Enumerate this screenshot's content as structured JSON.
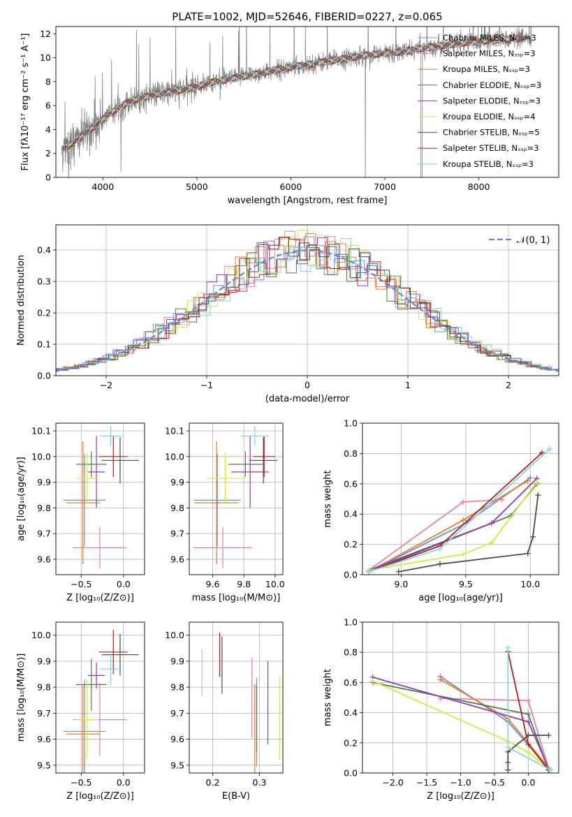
{
  "title": "PLATE=1002, MJD=52646, FIBERID=0227, z=0.065",
  "colors": [
    "#6b8fd6",
    "#e57fb3",
    "#e67e22",
    "#4a7d4a",
    "#8e3ab8",
    "#d4e840",
    "#4a4a4a",
    "#b01f1f",
    "#7fd8e0"
  ],
  "observed_color": "#808080",
  "chart_data": [
    {
      "id": "spectrum",
      "type": "line",
      "title": "PLATE=1002, MJD=52646, FIBERID=0227, z=0.065",
      "xlabel": "wavelength [Angstrom, rest frame]",
      "ylabel": "Flux [fλ10⁻¹⁷ erg cm⁻² s⁻¹ A⁻¹]",
      "xlim": [
        3500,
        8850
      ],
      "ylim": [
        0,
        12.6
      ],
      "xticks": [
        4000,
        5000,
        6000,
        7000,
        8000
      ],
      "yticks": [
        0,
        2,
        4,
        6,
        8,
        10,
        12
      ],
      "legend": "top-right",
      "grid": false,
      "legend_entries": [
        "Chabrier MILES, Nₛₛₚ=3",
        "Salpeter MILES, Nₛₛₚ=3",
        "Kroupa MILES, Nₛₛₚ=3",
        "Chabrier ELODIE, Nₛₛₚ=3",
        "Salpeter ELODIE, Nₛₛₚ=3",
        "Kroupa ELODIE, Nₛₛₚ=4",
        "Chabrier STELIB, Nₛₛₚ=5",
        "Salpeter STELIB, Nₛₛₚ=3",
        "Kroupa STELIB, Nₛₛₚ=3"
      ],
      "continuum": {
        "x": [
          3550,
          3700,
          3900,
          4100,
          4300,
          4600,
          4900,
          5200,
          5600,
          6000,
          6400,
          6800,
          7200,
          7400,
          7800,
          8200,
          8500
        ],
        "y": [
          2.2,
          3.0,
          4.2,
          5.5,
          6.4,
          7.0,
          7.4,
          8.0,
          8.6,
          9.2,
          9.7,
          10.2,
          10.5,
          10.8,
          11.2,
          11.5,
          11.6
        ]
      }
    },
    {
      "id": "residuals",
      "type": "histogram",
      "xlabel": "(data-model)/error",
      "ylabel": "Normed distribution",
      "xlim": [
        -2.5,
        2.5
      ],
      "ylim": [
        0,
        0.48
      ],
      "xticks": [
        -2,
        -1,
        0,
        1,
        2
      ],
      "yticks": [
        0.0,
        0.1,
        0.2,
        0.3,
        0.4
      ],
      "grid": true,
      "legend": "top-right",
      "legend_entries": [
        "𝒩(0, 1)"
      ],
      "reference_curve": "normal(0,1)",
      "bin_width": 0.1
    },
    {
      "id": "age-vs-Z",
      "type": "errorbar",
      "xlabel": "Z [log₁₀(Z/Z⊙)]",
      "ylabel": "age  [log₁₀(age/yr)]",
      "xlim": [
        -0.8,
        0.25
      ],
      "ylim": [
        9.54,
        10.13
      ],
      "xticks": [
        -0.5,
        0.0
      ],
      "yticks": [
        9.6,
        9.7,
        9.8,
        9.9,
        10.0,
        10.1
      ],
      "grid": true,
      "points": [
        {
          "x": -0.46,
          "xerr": 0.25,
          "y": 9.83,
          "yerr": 0.18
        },
        {
          "x": -0.28,
          "xerr": 0.32,
          "y": 9.645,
          "yerr": 0.08
        },
        {
          "x": -0.48,
          "xerr": 0.2,
          "y": 9.82,
          "yerr": 0.24
        },
        {
          "x": -0.38,
          "xerr": 0.18,
          "y": 9.97,
          "yerr": 0.05
        },
        {
          "x": -0.32,
          "xerr": 0.1,
          "y": 9.94,
          "yerr": 0.14
        },
        {
          "x": -0.43,
          "xerr": 0.13,
          "y": 9.915,
          "yerr": 0.1
        },
        {
          "x": -0.04,
          "xerr": 0.22,
          "y": 9.985,
          "yerr": 0.09
        },
        {
          "x": -0.12,
          "xerr": 0.17,
          "y": 10.0,
          "yerr": 0.08
        },
        {
          "x": -0.15,
          "xerr": 0.13,
          "y": 10.08,
          "yerr": 0.04
        }
      ]
    },
    {
      "id": "age-vs-mass",
      "type": "errorbar",
      "xlabel": "mass [log₁₀(M/M⊙)]",
      "ylabel": "",
      "xlim": [
        9.45,
        10.05
      ],
      "ylim": [
        9.54,
        10.13
      ],
      "xticks": [
        9.6,
        9.8,
        10.0
      ],
      "yticks": [
        9.6,
        9.7,
        9.8,
        9.9,
        10.0,
        10.1
      ],
      "grid": true,
      "points": [
        {
          "x": 9.63,
          "xerr": 0.15,
          "y": 9.83,
          "yerr": 0.18
        },
        {
          "x": 9.665,
          "xerr": 0.19,
          "y": 9.645,
          "yerr": 0.08
        },
        {
          "x": 9.625,
          "xerr": 0.14,
          "y": 9.82,
          "yerr": 0.24
        },
        {
          "x": 9.81,
          "xerr": 0.11,
          "y": 9.97,
          "yerr": 0.05
        },
        {
          "x": 9.84,
          "xerr": 0.12,
          "y": 9.94,
          "yerr": 0.14
        },
        {
          "x": 9.68,
          "xerr": 0.12,
          "y": 9.915,
          "yerr": 0.1
        },
        {
          "x": 9.925,
          "xerr": 0.09,
          "y": 9.985,
          "yerr": 0.09
        },
        {
          "x": 9.93,
          "xerr": 0.07,
          "y": 10.0,
          "yerr": 0.08
        },
        {
          "x": 9.87,
          "xerr": 0.09,
          "y": 10.08,
          "yerr": 0.04
        }
      ]
    },
    {
      "id": "mass-weight-vs-age",
      "type": "line",
      "xlabel": "age  [log₁₀(age/yr)]",
      "ylabel": "mass weight",
      "xlim": [
        8.7,
        10.22
      ],
      "ylim": [
        0.0,
        1.0
      ],
      "xticks": [
        9.0,
        9.5,
        10.0
      ],
      "yticks": [
        0.0,
        0.2,
        0.4,
        0.6,
        0.8,
        1.0
      ],
      "grid": true,
      "series": [
        {
          "x": [
            8.75,
            9.5,
            10.0
          ],
          "y": [
            0.02,
            0.34,
            0.64
          ]
        },
        {
          "x": [
            8.75,
            9.48,
            9.78
          ],
          "y": [
            0.03,
            0.48,
            0.495
          ]
        },
        {
          "x": [
            8.75,
            9.48,
            9.98
          ],
          "y": [
            0.02,
            0.36,
            0.62
          ]
        },
        {
          "x": [
            8.75,
            9.85,
            10.05
          ],
          "y": [
            0.02,
            0.39,
            0.6
          ]
        },
        {
          "x": [
            8.75,
            9.7,
            10.05
          ],
          "y": [
            0.03,
            0.34,
            0.635
          ]
        },
        {
          "x": [
            8.75,
            9.48,
            9.7,
            10.05
          ],
          "y": [
            0.03,
            0.135,
            0.21,
            0.61
          ]
        },
        {
          "x": [
            8.98,
            9.3,
            9.98,
            10.02,
            10.06
          ],
          "y": [
            0.02,
            0.07,
            0.14,
            0.25,
            0.525
          ]
        },
        {
          "x": [
            8.75,
            9.3,
            10.09
          ],
          "y": [
            0.02,
            0.19,
            0.805
          ]
        },
        {
          "x": [
            8.75,
            9.3,
            10.15
          ],
          "y": [
            0.02,
            0.17,
            0.83
          ]
        }
      ]
    },
    {
      "id": "mass-vs-Z",
      "type": "errorbar",
      "xlabel": "Z [log₁₀(Z/Z⊙)]",
      "ylabel": "mass [log₁₀(M/M⊙)]",
      "xlim": [
        -0.8,
        0.25
      ],
      "ylim": [
        9.47,
        10.05
      ],
      "xticks": [
        -0.5,
        0.0
      ],
      "yticks": [
        9.5,
        9.6,
        9.7,
        9.8,
        9.9,
        10.0
      ],
      "grid": true,
      "points": [
        {
          "x": -0.46,
          "xerr": 0.25,
          "y": 9.63,
          "yerr": 0.2
        },
        {
          "x": -0.28,
          "xerr": 0.32,
          "y": 9.675,
          "yerr": 0.14
        },
        {
          "x": -0.48,
          "xerr": 0.2,
          "y": 9.62,
          "yerr": 0.19
        },
        {
          "x": -0.38,
          "xerr": 0.18,
          "y": 9.81,
          "yerr": 0.1
        },
        {
          "x": -0.32,
          "xerr": 0.1,
          "y": 9.845,
          "yerr": 0.05
        },
        {
          "x": -0.43,
          "xerr": 0.13,
          "y": 9.675,
          "yerr": 0.15
        },
        {
          "x": -0.04,
          "xerr": 0.22,
          "y": 9.925,
          "yerr": 0.08
        },
        {
          "x": -0.12,
          "xerr": 0.17,
          "y": 9.935,
          "yerr": 0.085
        },
        {
          "x": -0.15,
          "xerr": 0.13,
          "y": 9.87,
          "yerr": 0.06
        }
      ]
    },
    {
      "id": "mass-vs-ebv",
      "type": "errorbar",
      "xlabel": "E(B-V)",
      "ylabel": "",
      "xlim": [
        0.15,
        0.35
      ],
      "ylim": [
        9.47,
        10.05
      ],
      "xticks": [
        0.2,
        0.3
      ],
      "yticks": [
        9.5,
        9.6,
        9.7,
        9.8,
        9.9,
        10.0
      ],
      "grid": true,
      "points": [
        {
          "x": 0.294,
          "y": 9.665,
          "yerr": 0.17
        },
        {
          "x": 0.284,
          "y": 9.76,
          "yerr": 0.155
        },
        {
          "x": 0.29,
          "y": 9.62,
          "yerr": 0.19
        },
        {
          "x": 0.294,
          "y": 9.68,
          "yerr": 0.13
        },
        {
          "x": 0.318,
          "y": 9.74,
          "yerr": 0.16
        },
        {
          "x": 0.343,
          "y": 9.68,
          "yerr": 0.16
        },
        {
          "x": 0.22,
          "y": 9.885,
          "yerr": 0.11
        },
        {
          "x": 0.215,
          "y": 9.925,
          "yerr": 0.085
        },
        {
          "x": 0.177,
          "y": 9.855,
          "yerr": 0.09
        }
      ]
    },
    {
      "id": "mass-weight-vs-Z",
      "type": "line",
      "xlabel": "Z [log₁₀(Z/Z⊙)]",
      "ylabel": "mass weight",
      "xlim": [
        -2.45,
        0.45
      ],
      "ylim": [
        0.0,
        1.0
      ],
      "xticks": [
        -2.0,
        -1.5,
        -1.0,
        -0.5,
        0.0
      ],
      "yticks": [
        0.0,
        0.2,
        0.4,
        0.6,
        0.8,
        1.0
      ],
      "grid": true,
      "series": [
        {
          "x": [
            -1.3,
            -0.3,
            0.33
          ],
          "y": [
            0.64,
            0.34,
            0.02
          ]
        },
        {
          "x": [
            -1.3,
            0.0,
            0.3
          ],
          "y": [
            0.495,
            0.48,
            0.03
          ]
        },
        {
          "x": [
            -1.3,
            -0.3,
            0.33
          ],
          "y": [
            0.62,
            0.36,
            0.02
          ]
        },
        {
          "x": [
            -2.3,
            0.0,
            0.3
          ],
          "y": [
            0.6,
            0.39,
            0.02
          ]
        },
        {
          "x": [
            -2.3,
            0.0,
            0.3
          ],
          "y": [
            0.635,
            0.34,
            0.03
          ]
        },
        {
          "x": [
            -2.3,
            -0.3,
            0.0,
            0.3
          ],
          "y": [
            0.61,
            0.21,
            0.135,
            0.03
          ]
        },
        {
          "x": [
            -0.3,
            -0.3,
            -0.3,
            0.0,
            0.3
          ],
          "y": [
            0.02,
            0.07,
            0.14,
            0.25,
            0.25
          ]
        },
        {
          "x": [
            -0.3,
            0.0,
            0.3
          ],
          "y": [
            0.805,
            0.19,
            0.02
          ]
        },
        {
          "x": [
            -0.3,
            -0.3,
            0.33
          ],
          "y": [
            0.83,
            0.17,
            0.02
          ]
        }
      ]
    }
  ]
}
